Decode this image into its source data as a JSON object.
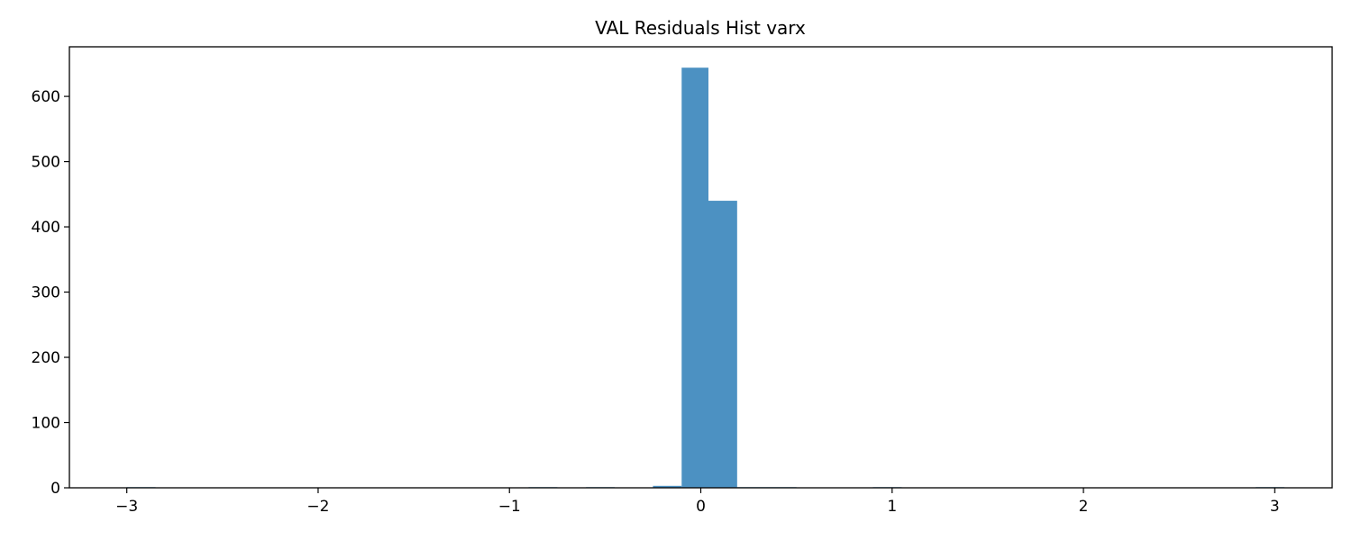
{
  "chart_data": {
    "type": "bar",
    "title": "VAL Residuals Hist varx",
    "xlabel": "",
    "ylabel": "",
    "xlim": [
      -3.3,
      3.3
    ],
    "ylim": [
      0,
      676
    ],
    "bar_color": "#4c91c2",
    "bins": [
      {
        "x0": -3.0,
        "x1": -2.85,
        "count": 1
      },
      {
        "x0": -0.9,
        "x1": -0.75,
        "count": 1
      },
      {
        "x0": -0.6,
        "x1": -0.45,
        "count": 1
      },
      {
        "x0": -0.25,
        "x1": -0.1,
        "count": 3
      },
      {
        "x0": -0.1,
        "x1": 0.04,
        "count": 644
      },
      {
        "x0": 0.04,
        "x1": 0.19,
        "count": 440
      },
      {
        "x0": 0.19,
        "x1": 0.34,
        "count": 1
      },
      {
        "x0": 0.34,
        "x1": 0.5,
        "count": 1
      },
      {
        "x0": 0.9,
        "x1": 1.05,
        "count": 1
      },
      {
        "x0": 2.9,
        "x1": 3.05,
        "count": 1
      }
    ],
    "x_ticks": [
      {
        "value": -3,
        "label": "−3"
      },
      {
        "value": -2,
        "label": "−2"
      },
      {
        "value": -1,
        "label": "−1"
      },
      {
        "value": 0,
        "label": "0"
      },
      {
        "value": 1,
        "label": "1"
      },
      {
        "value": 2,
        "label": "2"
      },
      {
        "value": 3,
        "label": "3"
      }
    ],
    "y_ticks": [
      {
        "value": 0,
        "label": "0"
      },
      {
        "value": 100,
        "label": "100"
      },
      {
        "value": 200,
        "label": "200"
      },
      {
        "value": 300,
        "label": "300"
      },
      {
        "value": 400,
        "label": "400"
      },
      {
        "value": 500,
        "label": "500"
      },
      {
        "value": 600,
        "label": "600"
      }
    ],
    "grid": false,
    "legend": "none"
  }
}
